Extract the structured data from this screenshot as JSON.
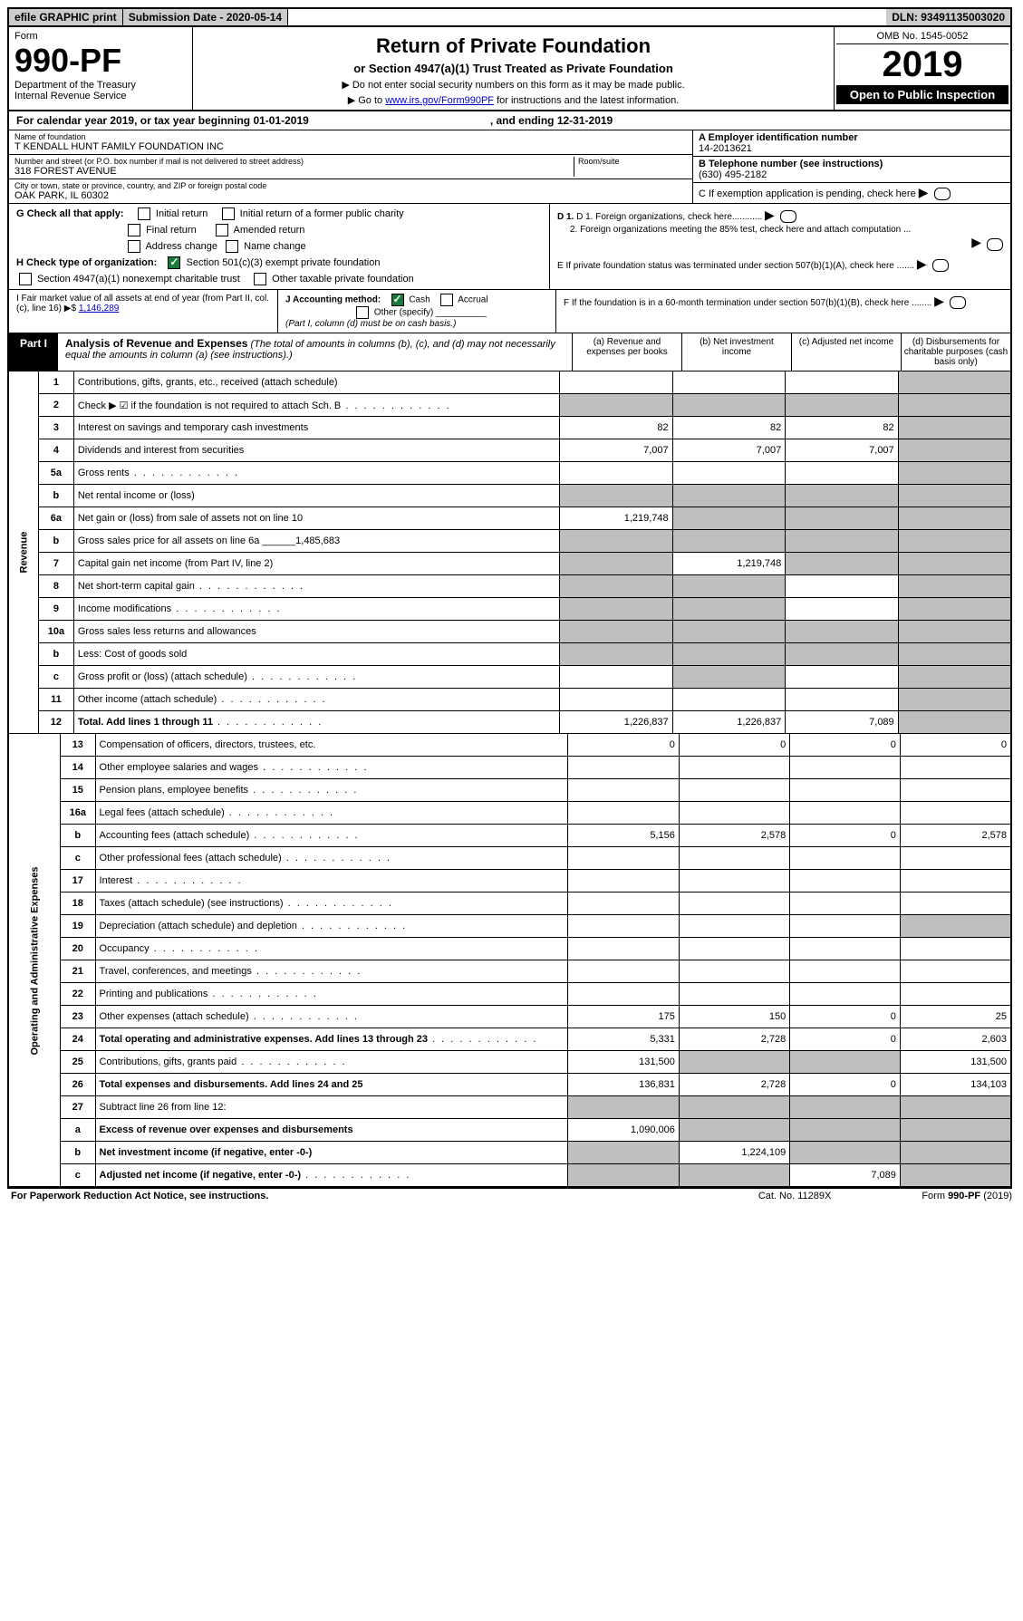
{
  "topbar": {
    "efile": "efile GRAPHIC print",
    "subdate_label": "Submission Date - 2020-05-14",
    "dln": "DLN: 93491135003020"
  },
  "header": {
    "form_label": "Form",
    "form_no": "990-PF",
    "dept": "Department of the Treasury",
    "irs": "Internal Revenue Service",
    "title": "Return of Private Foundation",
    "subtitle": "or Section 4947(a)(1) Trust Treated as Private Foundation",
    "note1": "▶ Do not enter social security numbers on this form as it may be made public.",
    "note2_pre": "▶ Go to ",
    "note2_link": "www.irs.gov/Form990PF",
    "note2_post": " for instructions and the latest information.",
    "omb": "OMB No. 1545-0052",
    "year": "2019",
    "open": "Open to Public Inspection"
  },
  "calyear": {
    "text": "For calendar year 2019, or tax year beginning 01-01-2019",
    "ending": ", and ending 12-31-2019"
  },
  "entity": {
    "name_lbl": "Name of foundation",
    "name": "T KENDALL HUNT FAMILY FOUNDATION INC",
    "addr_lbl": "Number and street (or P.O. box number if mail is not delivered to street address)",
    "room_lbl": "Room/suite",
    "addr": "318 FOREST AVENUE",
    "city_lbl": "City or town, state or province, country, and ZIP or foreign postal code",
    "city": "OAK PARK, IL  60302",
    "a_lbl": "A Employer identification number",
    "a_val": "14-2013621",
    "b_lbl": "B Telephone number (see instructions)",
    "b_val": "(630) 495-2182",
    "c_lbl": "C If exemption application is pending, check here"
  },
  "checks": {
    "g_lbl": "G Check all that apply:",
    "g1": "Initial return",
    "g2": "Initial return of a former public charity",
    "g3": "Final return",
    "g4": "Amended return",
    "g5": "Address change",
    "g6": "Name change",
    "h_lbl": "H Check type of organization:",
    "h1": "Section 501(c)(3) exempt private foundation",
    "h2": "Section 4947(a)(1) nonexempt charitable trust",
    "h3": "Other taxable private foundation",
    "d1": "D 1. Foreign organizations, check here............",
    "d2": "2. Foreign organizations meeting the 85% test, check here and attach computation ...",
    "e": "E  If private foundation status was terminated under section 507(b)(1)(A), check here .......",
    "i_lbl": "I Fair market value of all assets at end of year (from Part II, col. (c), line 16) ▶$",
    "i_val": "1,146,289",
    "j_lbl": "J Accounting method:",
    "j1": "Cash",
    "j2": "Accrual",
    "j3": "Other (specify)",
    "j_note": "(Part I, column (d) must be on cash basis.)",
    "f": "F  If the foundation is in a 60-month termination under section 507(b)(1)(B), check here ........"
  },
  "part1": {
    "label": "Part I",
    "title": "Analysis of Revenue and Expenses",
    "title_note": "(The total of amounts in columns (b), (c), and (d) may not necessarily equal the amounts in column (a) (see instructions).)",
    "col_a": "(a)   Revenue and expenses per books",
    "col_b": "(b)  Net investment income",
    "col_c": "(c)  Adjusted net income",
    "col_d": "(d)  Disbursements for charitable purposes (cash basis only)"
  },
  "sections": {
    "revenue": "Revenue",
    "expenses": "Operating and Administrative Expenses"
  },
  "rows": [
    {
      "n": "1",
      "d": "Contributions, gifts, grants, etc., received (attach schedule)",
      "a": "",
      "b": "",
      "c": "",
      "ag": false,
      "bg": false,
      "cg": false,
      "dg": true
    },
    {
      "n": "2",
      "d": "Check ▶ ☑ if the foundation is not required to attach Sch. B",
      "a": "",
      "b": "",
      "c": "",
      "ag": true,
      "bg": true,
      "cg": true,
      "dg": true,
      "dots": true
    },
    {
      "n": "3",
      "d": "Interest on savings and temporary cash investments",
      "a": "82",
      "b": "82",
      "c": "82",
      "ag": false,
      "bg": false,
      "cg": false,
      "dg": true
    },
    {
      "n": "4",
      "d": "Dividends and interest from securities",
      "a": "7,007",
      "b": "7,007",
      "c": "7,007",
      "ag": false,
      "bg": false,
      "cg": false,
      "dg": true
    },
    {
      "n": "5a",
      "d": "Gross rents",
      "a": "",
      "b": "",
      "c": "",
      "ag": false,
      "bg": false,
      "cg": false,
      "dg": true,
      "dots": true
    },
    {
      "n": "b",
      "d": "Net rental income or (loss)",
      "a": "",
      "b": "",
      "c": "",
      "ag": true,
      "bg": true,
      "cg": true,
      "dg": true
    },
    {
      "n": "6a",
      "d": "Net gain or (loss) from sale of assets not on line 10",
      "a": "1,219,748",
      "b": "",
      "c": "",
      "ag": false,
      "bg": true,
      "cg": true,
      "dg": true
    },
    {
      "n": "b",
      "d": "Gross sales price for all assets on line 6a ______1,485,683",
      "a": "",
      "b": "",
      "c": "",
      "ag": true,
      "bg": true,
      "cg": true,
      "dg": true
    },
    {
      "n": "7",
      "d": "Capital gain net income (from Part IV, line 2)",
      "a": "",
      "b": "1,219,748",
      "c": "",
      "ag": true,
      "bg": false,
      "cg": true,
      "dg": true
    },
    {
      "n": "8",
      "d": "Net short-term capital gain",
      "a": "",
      "b": "",
      "c": "",
      "ag": true,
      "bg": true,
      "cg": false,
      "dg": true,
      "dots": true
    },
    {
      "n": "9",
      "d": "Income modifications",
      "a": "",
      "b": "",
      "c": "",
      "ag": true,
      "bg": true,
      "cg": false,
      "dg": true,
      "dots": true
    },
    {
      "n": "10a",
      "d": "Gross sales less returns and allowances",
      "a": "",
      "b": "",
      "c": "",
      "ag": true,
      "bg": true,
      "cg": true,
      "dg": true
    },
    {
      "n": "b",
      "d": "Less: Cost of goods sold",
      "a": "",
      "b": "",
      "c": "",
      "ag": true,
      "bg": true,
      "cg": true,
      "dg": true
    },
    {
      "n": "c",
      "d": "Gross profit or (loss) (attach schedule)",
      "a": "",
      "b": "",
      "c": "",
      "ag": false,
      "bg": true,
      "cg": false,
      "dg": true,
      "dots": true
    },
    {
      "n": "11",
      "d": "Other income (attach schedule)",
      "a": "",
      "b": "",
      "c": "",
      "ag": false,
      "bg": false,
      "cg": false,
      "dg": true,
      "dots": true
    },
    {
      "n": "12",
      "d": "Total. Add lines 1 through 11",
      "a": "1,226,837",
      "b": "1,226,837",
      "c": "7,089",
      "ag": false,
      "bg": false,
      "cg": false,
      "dg": true,
      "bold": true,
      "dots": true
    }
  ],
  "exp_rows": [
    {
      "n": "13",
      "d": "Compensation of officers, directors, trustees, etc.",
      "a": "0",
      "b": "0",
      "c": "0",
      "dv": "0"
    },
    {
      "n": "14",
      "d": "Other employee salaries and wages",
      "dots": true
    },
    {
      "n": "15",
      "d": "Pension plans, employee benefits",
      "dots": true
    },
    {
      "n": "16a",
      "d": "Legal fees (attach schedule)",
      "dots": true
    },
    {
      "n": "b",
      "d": "Accounting fees (attach schedule)",
      "a": "5,156",
      "b": "2,578",
      "c": "0",
      "dv": "2,578",
      "dots": true
    },
    {
      "n": "c",
      "d": "Other professional fees (attach schedule)",
      "dots": true
    },
    {
      "n": "17",
      "d": "Interest",
      "dots": true
    },
    {
      "n": "18",
      "d": "Taxes (attach schedule) (see instructions)",
      "dots": true
    },
    {
      "n": "19",
      "d": "Depreciation (attach schedule) and depletion",
      "dg": true,
      "dots": true
    },
    {
      "n": "20",
      "d": "Occupancy",
      "dots": true
    },
    {
      "n": "21",
      "d": "Travel, conferences, and meetings",
      "dots": true
    },
    {
      "n": "22",
      "d": "Printing and publications",
      "dots": true
    },
    {
      "n": "23",
      "d": "Other expenses (attach schedule)",
      "a": "175",
      "b": "150",
      "c": "0",
      "dv": "25",
      "dots": true
    },
    {
      "n": "24",
      "d": "Total operating and administrative expenses. Add lines 13 through 23",
      "a": "5,331",
      "b": "2,728",
      "c": "0",
      "dv": "2,603",
      "bold": true,
      "dots": true
    },
    {
      "n": "25",
      "d": "Contributions, gifts, grants paid",
      "a": "131,500",
      "bg": true,
      "cg": true,
      "dv": "131,500",
      "dots": true
    },
    {
      "n": "26",
      "d": "Total expenses and disbursements. Add lines 24 and 25",
      "a": "136,831",
      "b": "2,728",
      "c": "0",
      "dv": "134,103",
      "bold": true
    },
    {
      "n": "27",
      "d": "Subtract line 26 from line 12:",
      "ag": true,
      "bg": true,
      "cg": true,
      "dg": true
    },
    {
      "n": "a",
      "d": "Excess of revenue over expenses and disbursements",
      "a": "1,090,006",
      "bg": true,
      "cg": true,
      "dg": true,
      "bold": true
    },
    {
      "n": "b",
      "d": "Net investment income (if negative, enter -0-)",
      "ag": true,
      "b": "1,224,109",
      "cg": true,
      "dg": true,
      "bold": true
    },
    {
      "n": "c",
      "d": "Adjusted net income (if negative, enter -0-)",
      "ag": true,
      "bg": true,
      "c": "7,089",
      "dg": true,
      "bold": true,
      "dots": true
    }
  ],
  "footer": {
    "pra": "For Paperwork Reduction Act Notice, see instructions.",
    "cat": "Cat. No. 11289X",
    "form": "Form 990-PF (2019)"
  }
}
